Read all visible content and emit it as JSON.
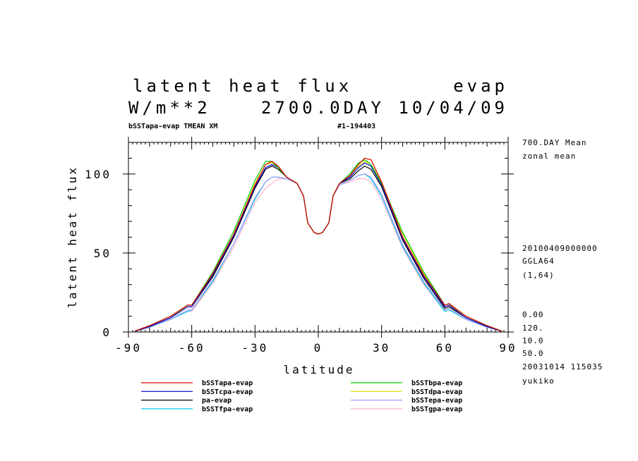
{
  "header": {
    "title_left": "latent heat flux",
    "title_right": "evap",
    "unit": "W/m**2",
    "time_info": "2700.0DAY 10/04/09",
    "run_label": "bSSTapa-evap TMEAN XM",
    "run_id": "#1-194403"
  },
  "side_info": {
    "line1": "700.DAY Mean",
    "line2": "zonal mean",
    "line3": "20100409000000",
    "line4": "GGLA64",
    "line5": "(1,64)",
    "line6": "0.00",
    "line7": "120.",
    "line8": "10.0",
    "line9": "50.0",
    "line10": "20031014 115035",
    "line11": "yukiko"
  },
  "chart_data": {
    "type": "line",
    "xlabel": "latitude",
    "ylabel": "latent heat flux",
    "xlim": [
      -90,
      90
    ],
    "ylim": [
      0,
      120
    ],
    "xticks": [
      -90,
      -60,
      -30,
      0,
      30,
      60,
      90
    ],
    "xtick_labels": [
      "-90",
      "-60",
      "-30",
      "0",
      "30",
      "60",
      "90"
    ],
    "yticks": [
      0,
      50,
      100
    ],
    "ytick_labels": [
      "0",
      "50",
      "100"
    ],
    "grid": false,
    "legend_position": "bottom",
    "x": [
      -87,
      -80,
      -70,
      -62,
      -60,
      -50,
      -40,
      -30,
      -25,
      -22,
      -19,
      -15,
      -10,
      -7,
      -5,
      -2,
      0,
      2,
      5,
      7,
      10,
      15,
      19,
      22,
      25,
      30,
      40,
      50,
      60,
      62,
      70,
      80,
      87
    ],
    "series": [
      {
        "name": "bSSTapa-evap",
        "color": "#e00000",
        "values": [
          0.6,
          4,
          10,
          17,
          17,
          37,
          62,
          93,
          106,
          108,
          105,
          98,
          94,
          86,
          69,
          63,
          62,
          63,
          69,
          86,
          94,
          99,
          106,
          110,
          109,
          95,
          60,
          36,
          17,
          18,
          10,
          4,
          0.6
        ]
      },
      {
        "name": "bSSTbpa-evap",
        "color": "#00cc00",
        "values": [
          0.6,
          4,
          10,
          17,
          17,
          38,
          64,
          96,
          108,
          108,
          104,
          98,
          94,
          86,
          69,
          63,
          62,
          63,
          69,
          86,
          94,
          100,
          107,
          109,
          106,
          94,
          63,
          38,
          17,
          18,
          10,
          4,
          0.6
        ]
      },
      {
        "name": "bSSTcpa-evap",
        "color": "#0000cc",
        "values": [
          0.5,
          3.5,
          9,
          16,
          16,
          36,
          61,
          92,
          104,
          106,
          104,
          98,
          94,
          86,
          69,
          63,
          62,
          63,
          69,
          86,
          94,
          98,
          104,
          107,
          105,
          93,
          59,
          35,
          16,
          17,
          9,
          3.5,
          0.5
        ]
      },
      {
        "name": "bSSTdpa-evap",
        "color": "#dddd00",
        "values": [
          0.6,
          4,
          10,
          16,
          16,
          37,
          62,
          94,
          106,
          107,
          104,
          98,
          94,
          86,
          69,
          63,
          62,
          63,
          69,
          86,
          94,
          99,
          105,
          108,
          106,
          95,
          62,
          37,
          16,
          17,
          10,
          4,
          0.6
        ]
      },
      {
        "name": "pa-evap",
        "color": "#000000",
        "values": [
          0.5,
          3.5,
          9,
          16,
          16,
          35,
          60,
          91,
          103,
          105,
          103,
          98,
          94,
          86,
          69,
          63,
          62,
          63,
          69,
          86,
          94,
          97,
          102,
          105,
          103,
          92,
          58,
          34,
          15,
          16,
          9,
          3.5,
          0.5
        ]
      },
      {
        "name": "bSSTepa-evap",
        "color": "#9a9aff",
        "values": [
          0.5,
          3,
          8,
          14,
          14,
          33,
          56,
          85,
          95,
          98,
          98,
          97,
          94,
          86,
          69,
          63,
          62,
          63,
          69,
          86,
          93,
          96,
          99,
          100,
          98,
          87,
          55,
          32,
          14,
          15,
          8,
          3,
          0.5
        ]
      },
      {
        "name": "bSSTfpa-evap",
        "color": "#00d0e8",
        "values": [
          0.5,
          3,
          8,
          13,
          14,
          32,
          56,
          84,
          95,
          98,
          98,
          97,
          94,
          86,
          69,
          63,
          62,
          63,
          69,
          86,
          93,
          96,
          99,
          100,
          97,
          86,
          54,
          31,
          13,
          14,
          8,
          3,
          0.5
        ]
      },
      {
        "name": "bSSTgpa-evap",
        "color": "#ffb0c8",
        "values": [
          0.5,
          3,
          8,
          13,
          13,
          31,
          54,
          82,
          91,
          94,
          97,
          97,
          94,
          86,
          69,
          63,
          62,
          63,
          69,
          86,
          93,
          95,
          97,
          97,
          95,
          84,
          53,
          30,
          13,
          14,
          8,
          3,
          0.5
        ]
      }
    ],
    "legend_left": [
      "bSSTapa-evap",
      "bSSTcpa-evap",
      "pa-evap",
      "bSSTfpa-evap"
    ],
    "legend_right": [
      "bSSTbpa-evap",
      "bSSTdpa-evap",
      "bSSTepa-evap",
      "bSSTgpa-evap"
    ]
  }
}
